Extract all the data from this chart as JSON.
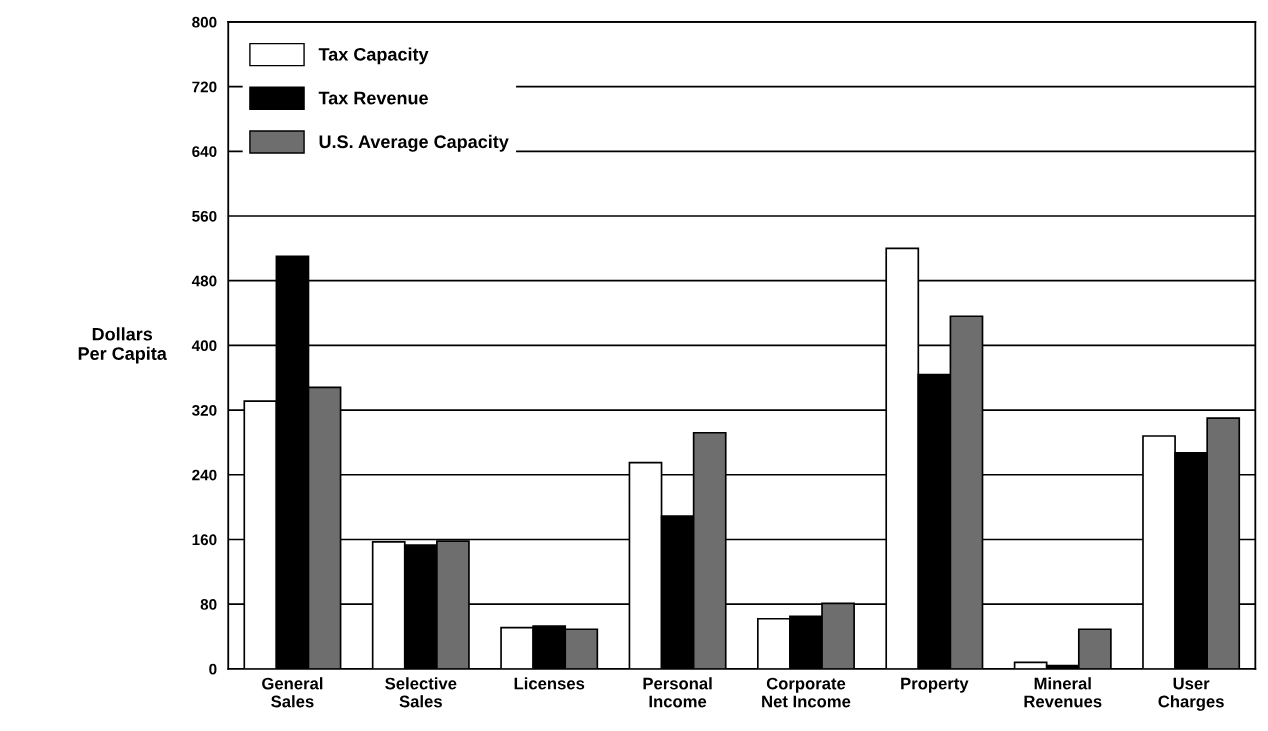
{
  "chart_data": {
    "type": "bar",
    "ylabel": "Dollars\nPer Capita",
    "categories": [
      "General\nSales",
      "Selective\nSales",
      "Licenses",
      "Personal\nIncome",
      "Corporate\nNet Income",
      "Property",
      "Mineral\nRevenues",
      "User\nCharges"
    ],
    "series": [
      {
        "name": "Tax Capacity",
        "color": "#ffffff",
        "values": [
          331,
          157,
          51,
          255,
          62,
          520,
          8,
          288
        ]
      },
      {
        "name": "Tax Revenue",
        "color": "#000000",
        "values": [
          510,
          153,
          53,
          189,
          65,
          364,
          4,
          267
        ]
      },
      {
        "name": "U.S. Average Capacity",
        "color": "#6e6e6e",
        "values": [
          348,
          158,
          49,
          292,
          81,
          436,
          49,
          310
        ]
      }
    ],
    "ylim": [
      0,
      800
    ],
    "yticks": [
      0,
      80,
      160,
      240,
      320,
      400,
      480,
      560,
      640,
      720,
      800
    ],
    "grid": "y",
    "legend": "top left"
  }
}
